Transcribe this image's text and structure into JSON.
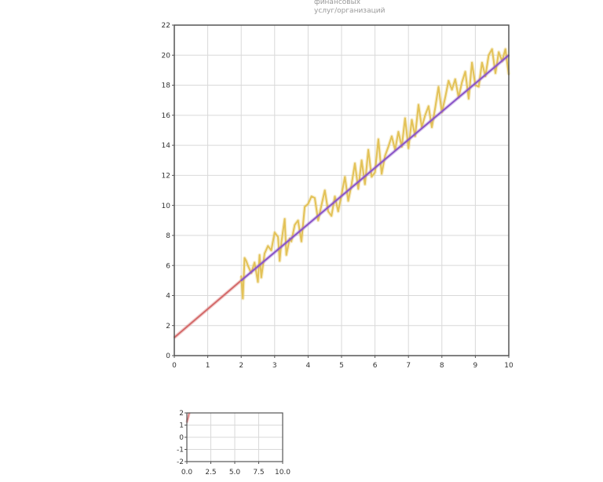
{
  "legend": {
    "lines": [
      "финансовых",
      "услуг/организаций"
    ]
  },
  "colors": {
    "noisy": "#e3c257",
    "fit": "#8a55c8",
    "trend": "#d46a6a",
    "grid": "#d9d9d9",
    "axis": "#555555"
  },
  "chart_data": [
    {
      "type": "line",
      "title": "",
      "xlabel": "",
      "ylabel": "",
      "xlim": [
        0,
        10
      ],
      "ylim": [
        0,
        22
      ],
      "grid": true,
      "x_ticks": [
        "0",
        "1",
        "2",
        "3",
        "4",
        "5",
        "6",
        "7",
        "8",
        "9",
        "10"
      ],
      "y_ticks": [
        "0",
        "2",
        "4",
        "6",
        "8",
        "10",
        "12",
        "14",
        "16",
        "18",
        "20",
        "22"
      ],
      "series": [
        {
          "name": "",
          "style": "trend",
          "x": [
            0,
            2
          ],
          "y": [
            1.2,
            5.0
          ]
        },
        {
          "name": "",
          "style": "noisy",
          "x": [
            2.0,
            2.05,
            2.1,
            2.15,
            2.2,
            2.3,
            2.4,
            2.5,
            2.55,
            2.6,
            2.7,
            2.8,
            2.9,
            3.0,
            3.1,
            3.15,
            3.2,
            3.3,
            3.35,
            3.45,
            3.5,
            3.6,
            3.7,
            3.8,
            3.9,
            4.0,
            4.1,
            4.2,
            4.3,
            4.4,
            4.5,
            4.6,
            4.7,
            4.8,
            4.9,
            5.0,
            5.1,
            5.2,
            5.3,
            5.4,
            5.5,
            5.6,
            5.7,
            5.8,
            5.9,
            6.0,
            6.1,
            6.2,
            6.3,
            6.4,
            6.5,
            6.6,
            6.7,
            6.8,
            6.9,
            7.0,
            7.1,
            7.2,
            7.3,
            7.4,
            7.5,
            7.6,
            7.7,
            7.8,
            7.9,
            8.0,
            8.1,
            8.2,
            8.3,
            8.4,
            8.5,
            8.6,
            8.7,
            8.8,
            8.9,
            9.0,
            9.1,
            9.2,
            9.3,
            9.4,
            9.5,
            9.6,
            9.7,
            9.8,
            9.9,
            10.0
          ],
          "y": [
            5.3,
            3.8,
            6.5,
            6.3,
            6.0,
            5.5,
            6.2,
            4.9,
            6.7,
            5.2,
            6.8,
            7.3,
            7.0,
            8.2,
            7.9,
            6.3,
            7.5,
            9.1,
            6.7,
            7.8,
            7.6,
            8.7,
            9.0,
            7.6,
            9.9,
            10.1,
            10.6,
            10.5,
            9.0,
            10.0,
            11.0,
            9.6,
            9.3,
            10.6,
            9.6,
            10.7,
            11.9,
            10.3,
            11.4,
            12.8,
            11.1,
            13.0,
            11.4,
            13.7,
            11.9,
            12.2,
            14.4,
            12.1,
            13.3,
            13.9,
            14.6,
            13.7,
            14.9,
            13.9,
            15.8,
            13.8,
            15.7,
            14.6,
            16.7,
            15.2,
            16.0,
            16.6,
            15.2,
            16.5,
            17.9,
            16.2,
            17.2,
            18.3,
            17.7,
            18.4,
            17.2,
            18.2,
            18.9,
            17.1,
            19.5,
            18.0,
            17.9,
            19.5,
            18.6,
            20.0,
            20.4,
            18.8,
            20.2,
            19.6,
            20.4,
            18.7
          ]
        },
        {
          "name": "",
          "style": "fit",
          "x": [
            2,
            10
          ],
          "y": [
            5.0,
            20.0
          ]
        }
      ]
    },
    {
      "type": "line",
      "title": "",
      "xlabel": "",
      "ylabel": "",
      "xlim": [
        0,
        10
      ],
      "ylim": [
        -2,
        2
      ],
      "grid": true,
      "x_ticks": [
        "0.0",
        "2.5",
        "5.0",
        "7.5",
        "10.0"
      ],
      "y_ticks": [
        "-2",
        "-1",
        "0",
        "1",
        "2"
      ],
      "series": [
        {
          "name": "",
          "style": "trend",
          "x": [
            0,
            0.25
          ],
          "y": [
            1.2,
            2.0
          ]
        }
      ]
    }
  ]
}
